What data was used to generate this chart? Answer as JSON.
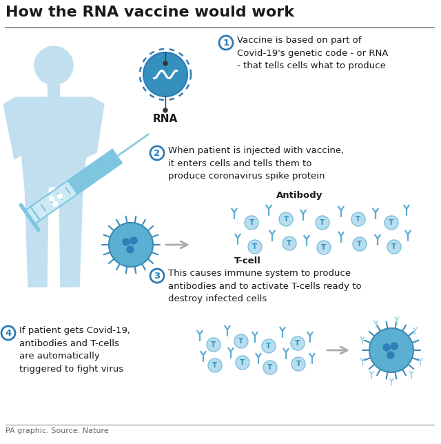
{
  "title": "How the RNA vaccine would work",
  "title_fontsize": 16,
  "title_fontweight": "bold",
  "bg_color": "#ffffff",
  "text_color": "#1a1a1a",
  "blue_light": "#b8ddef",
  "blue_medium": "#5aabcf",
  "blue_dark": "#2b7bb5",
  "blue_cell": "#4a9ec4",
  "blue_silhouette": "#c2dff0",
  "step1_text": "Vaccine is based on part of\nCovid-19's genetic code - or RNA\n- that tells cells what to produce",
  "step2_text": "When patient is injected with vaccine,\nit enters cells and tells them to\nproduce coronavirus spike protein",
  "step3_text": "This causes immune system to produce\nantibodies and to activate T-cells ready to\ndestroy infected cells",
  "step4_text": "If patient gets Covid-19,\nantibodies and T-cells\nare automatically\ntriggered to fight virus",
  "antibody_label": "Antibody",
  "tcell_label": "T-cell",
  "rna_label": "RNA",
  "footer": "PA graphic. Source: Nature"
}
